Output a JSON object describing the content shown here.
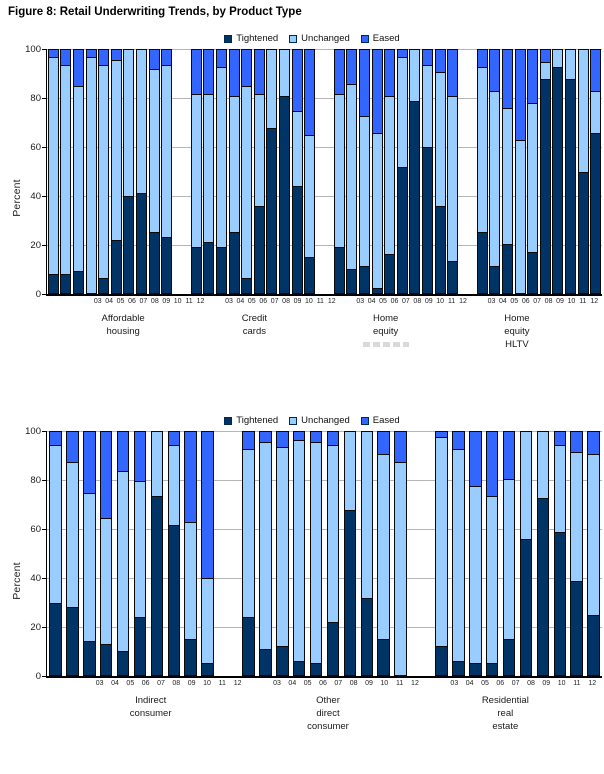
{
  "title": "Figure 8: Retail Underwriting Trends, by Product Type",
  "colors": {
    "Tightened": "#003366",
    "Unchanged": "#99CCFF",
    "Eased": "#3366FF"
  },
  "legend": {
    "labels": [
      "Tightened",
      "Unchanged",
      "Eased"
    ]
  },
  "chart_data": [
    {
      "type": "bar",
      "stacked": true,
      "ylabel": "Percent",
      "ylim": [
        0,
        100
      ],
      "yticks": [
        0,
        20,
        40,
        60,
        80,
        100
      ],
      "grid": true,
      "legend_position": "top",
      "categories": [
        "03",
        "04",
        "05",
        "06",
        "07",
        "08",
        "09",
        "10",
        "11",
        "12"
      ],
      "groups": [
        {
          "label_lines": [
            "Affordable",
            "housing"
          ],
          "series": [
            {
              "name": "Tightened",
              "values": [
                8,
                8,
                9,
                0,
                6,
                22,
                40,
                41,
                25,
                23
              ]
            },
            {
              "name": "Unchanged",
              "values": [
                89,
                86,
                76,
                97,
                88,
                74,
                60,
                59,
                67,
                71
              ]
            },
            {
              "name": "Eased",
              "values": [
                3,
                6,
                15,
                3,
                6,
                4,
                0,
                0,
                8,
                6
              ]
            }
          ]
        },
        {
          "label_lines": [
            "Credit",
            "cards"
          ],
          "series": [
            {
              "name": "Tightened",
              "values": [
                19,
                21,
                19,
                25,
                6,
                36,
                68,
                81,
                44,
                15
              ]
            },
            {
              "name": "Unchanged",
              "values": [
                63,
                61,
                74,
                56,
                79,
                46,
                32,
                19,
                31,
                50
              ]
            },
            {
              "name": "Eased",
              "values": [
                18,
                18,
                7,
                19,
                15,
                18,
                0,
                0,
                25,
                35
              ]
            }
          ]
        },
        {
          "label_lines": [
            "Home",
            "equity"
          ],
          "faded_note": true,
          "series": [
            {
              "name": "Tightened",
              "values": [
                19,
                10,
                11,
                2,
                16,
                52,
                79,
                60,
                36,
                13
              ]
            },
            {
              "name": "Unchanged",
              "values": [
                63,
                76,
                62,
                64,
                65,
                45,
                21,
                34,
                55,
                68
              ]
            },
            {
              "name": "Eased",
              "values": [
                18,
                14,
                27,
                34,
                19,
                3,
                0,
                6,
                9,
                19
              ]
            }
          ]
        },
        {
          "label_lines": [
            "Home",
            "equity",
            "HLTV"
          ],
          "series": [
            {
              "name": "Tightened",
              "values": [
                25,
                11,
                20,
                0,
                17,
                88,
                93,
                88,
                50,
                66
              ]
            },
            {
              "name": "Unchanged",
              "values": [
                68,
                72,
                56,
                63,
                61,
                7,
                7,
                12,
                50,
                17
              ]
            },
            {
              "name": "Eased",
              "values": [
                7,
                17,
                24,
                37,
                22,
                5,
                0,
                0,
                0,
                17
              ]
            }
          ]
        }
      ]
    },
    {
      "type": "bar",
      "stacked": true,
      "ylabel": "Percent",
      "ylim": [
        0,
        100
      ],
      "yticks": [
        0,
        20,
        40,
        60,
        80,
        100
      ],
      "grid": true,
      "legend_position": "top",
      "categories": [
        "03",
        "04",
        "05",
        "06",
        "07",
        "08",
        "09",
        "10",
        "11",
        "12"
      ],
      "groups": [
        {
          "label_lines": [
            "Indirect",
            "consumer"
          ],
          "series": [
            {
              "name": "Tightened",
              "values": [
                30,
                28,
                14,
                13,
                10,
                24,
                74,
                62,
                15,
                5
              ]
            },
            {
              "name": "Unchanged",
              "values": [
                65,
                60,
                61,
                52,
                74,
                56,
                26,
                33,
                48,
                35
              ]
            },
            {
              "name": "Eased",
              "values": [
                5,
                12,
                25,
                35,
                16,
                20,
                0,
                5,
                37,
                60
              ]
            }
          ]
        },
        {
          "label_lines": [
            "Other",
            "direct",
            "consumer"
          ],
          "series": [
            {
              "name": "Tightened",
              "values": [
                24,
                11,
                12,
                6,
                5,
                22,
                68,
                32,
                15,
                0
              ]
            },
            {
              "name": "Unchanged",
              "values": [
                69,
                85,
                82,
                91,
                91,
                73,
                32,
                68,
                76,
                88
              ]
            },
            {
              "name": "Eased",
              "values": [
                7,
                4,
                6,
                3,
                4,
                5,
                0,
                0,
                9,
                12
              ]
            }
          ]
        },
        {
          "label_lines": [
            "Residential",
            "real",
            "estate"
          ],
          "series": [
            {
              "name": "Tightened",
              "values": [
                12,
                6,
                5,
                5,
                15,
                56,
                73,
                59,
                39,
                25
              ]
            },
            {
              "name": "Unchanged",
              "values": [
                86,
                87,
                73,
                69,
                66,
                44,
                27,
                36,
                53,
                66
              ]
            },
            {
              "name": "Eased",
              "values": [
                2,
                7,
                22,
                26,
                19,
                0,
                0,
                5,
                8,
                9
              ]
            }
          ]
        }
      ]
    }
  ]
}
